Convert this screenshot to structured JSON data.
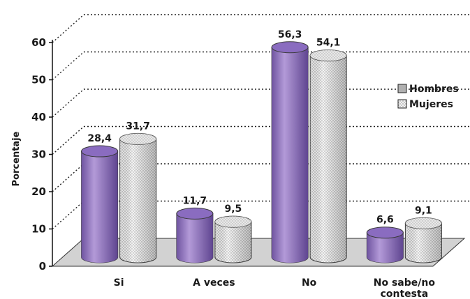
{
  "chart_data": {
    "type": "bar",
    "style": "3d-cylinder",
    "categories": [
      "Si",
      "A veces",
      "No",
      "No sabe/no contesta"
    ],
    "series": [
      {
        "name": "Hombres",
        "values": [
          28.4,
          11.7,
          56.3,
          6.6
        ],
        "labels": [
          "28,4",
          "11,7",
          "56,3",
          "6,6"
        ],
        "color": "#9b7fc6",
        "pattern": "solid"
      },
      {
        "name": "Mujeres",
        "values": [
          31.7,
          9.5,
          54.1,
          9.1
        ],
        "labels": [
          "31,7",
          "9,5",
          "54,1",
          "9,1"
        ],
        "color": "#e8e8e8",
        "pattern": "dotted"
      }
    ],
    "yticks": [
      "0",
      "10",
      "20",
      "30",
      "40",
      "50",
      "60"
    ],
    "ylim": [
      0,
      60
    ],
    "ylabel": "Porcentaje",
    "xlabel": "",
    "title": "",
    "grid": "dotted-horizontal",
    "legend_position": "right"
  }
}
